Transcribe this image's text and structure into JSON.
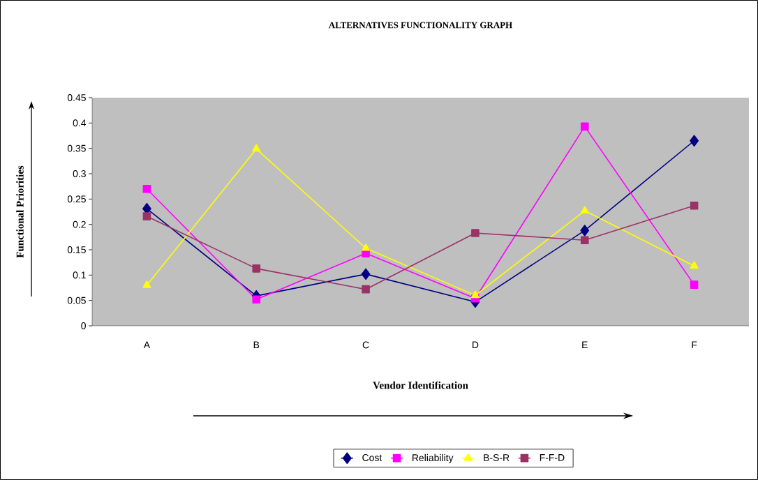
{
  "chart_data": {
    "type": "line",
    "title": "ALTERNATIVES FUNCTIONALITY GRAPH",
    "xlabel": "Vendor Identification",
    "ylabel": "Functional Priorities",
    "categories": [
      "A",
      "B",
      "C",
      "D",
      "E",
      "F"
    ],
    "series": [
      {
        "name": "Cost",
        "color": "#000080",
        "marker": "diamond",
        "values": [
          0.231,
          0.059,
          0.102,
          0.047,
          0.188,
          0.365
        ]
      },
      {
        "name": "Reliability",
        "color": "#ff00ff",
        "marker": "square",
        "values": [
          0.27,
          0.052,
          0.143,
          0.054,
          0.393,
          0.081
        ]
      },
      {
        "name": "B-S-R",
        "color": "#ffff00",
        "marker": "triangle",
        "values": [
          0.08,
          0.349,
          0.153,
          0.06,
          0.227,
          0.118
        ]
      },
      {
        "name": "F-F-D",
        "color": "#993366",
        "marker": "square",
        "values": [
          0.216,
          0.113,
          0.072,
          0.183,
          0.169,
          0.237
        ]
      }
    ],
    "ylim": [
      0,
      0.45
    ],
    "yticks": [
      0,
      0.05,
      0.1,
      0.15,
      0.2,
      0.25,
      0.3,
      0.35,
      0.4,
      0.45
    ],
    "grid": false,
    "legend": "bottom",
    "line_style": "solid"
  }
}
